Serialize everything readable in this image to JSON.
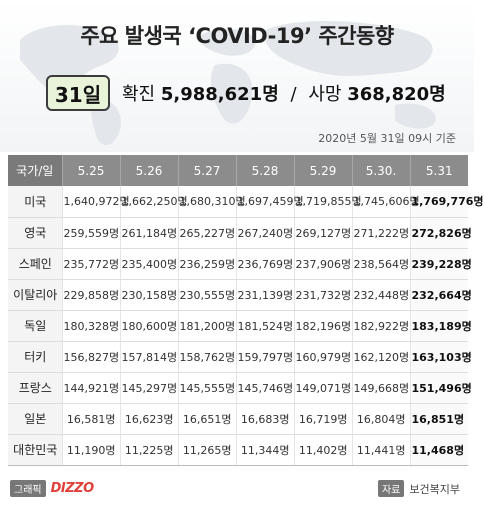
{
  "header": {
    "title": "주요 발생국 ‘COVID-19’ 주간동향",
    "day_badge": "31일",
    "confirmed_label": "확진",
    "confirmed_value": "5,988,621명",
    "separator": "/",
    "deaths_label": "사망",
    "deaths_value": "368,820명",
    "dateline": "2020년 5월 31일 09시 기준"
  },
  "table": {
    "header_country": "국가/일",
    "dates": [
      "5.25",
      "5.26",
      "5.27",
      "5.28",
      "5.29",
      "5.30.",
      "5.31"
    ],
    "rows": [
      {
        "country": "미국",
        "values": [
          "1,640,972명",
          "1,662,250명",
          "1,680,310명",
          "1,697,459명",
          "1,719,855명",
          "1,745,606명",
          "1,769,776명"
        ]
      },
      {
        "country": "영국",
        "values": [
          "259,559명",
          "261,184명",
          "265,227명",
          "267,240명",
          "269,127명",
          "271,222명",
          "272,826명"
        ]
      },
      {
        "country": "스페인",
        "values": [
          "235,772명",
          "235,400명",
          "236,259명",
          "236,769명",
          "237,906명",
          "238,564명",
          "239,228명"
        ]
      },
      {
        "country": "이탈리아",
        "values": [
          "229,858명",
          "230,158명",
          "230,555명",
          "231,139명",
          "231,732명",
          "232,448명",
          "232,664명"
        ]
      },
      {
        "country": "독일",
        "values": [
          "180,328명",
          "180,600명",
          "181,200명",
          "181,524명",
          "182,196명",
          "182,922명",
          "183,189명"
        ]
      },
      {
        "country": "터키",
        "values": [
          "156,827명",
          "157,814명",
          "158,762명",
          "159,797명",
          "160,979명",
          "162,120명",
          "163,103명"
        ]
      },
      {
        "country": "프랑스",
        "values": [
          "144,921명",
          "145,297명",
          "145,555명",
          "145,746명",
          "149,071명",
          "149,668명",
          "151,496명"
        ]
      },
      {
        "country": "일본",
        "values": [
          "16,581명",
          "16,623명",
          "16,651명",
          "16,683명",
          "16,719명",
          "16,804명",
          "16,851명"
        ]
      },
      {
        "country": "대한민국",
        "values": [
          "11,190명",
          "11,225명",
          "11,265명",
          "11,344명",
          "11,402명",
          "11,441명",
          "11,468명"
        ]
      }
    ]
  },
  "footer": {
    "graphic_label": "그래픽",
    "brand": "DIZZO",
    "source_label": "자료",
    "source_name": "보건복지부"
  },
  "colors": {
    "badge_bg": "#e9f3d9",
    "header_row_bg": "#8c8c8c",
    "brand_red": "#e0403a"
  }
}
